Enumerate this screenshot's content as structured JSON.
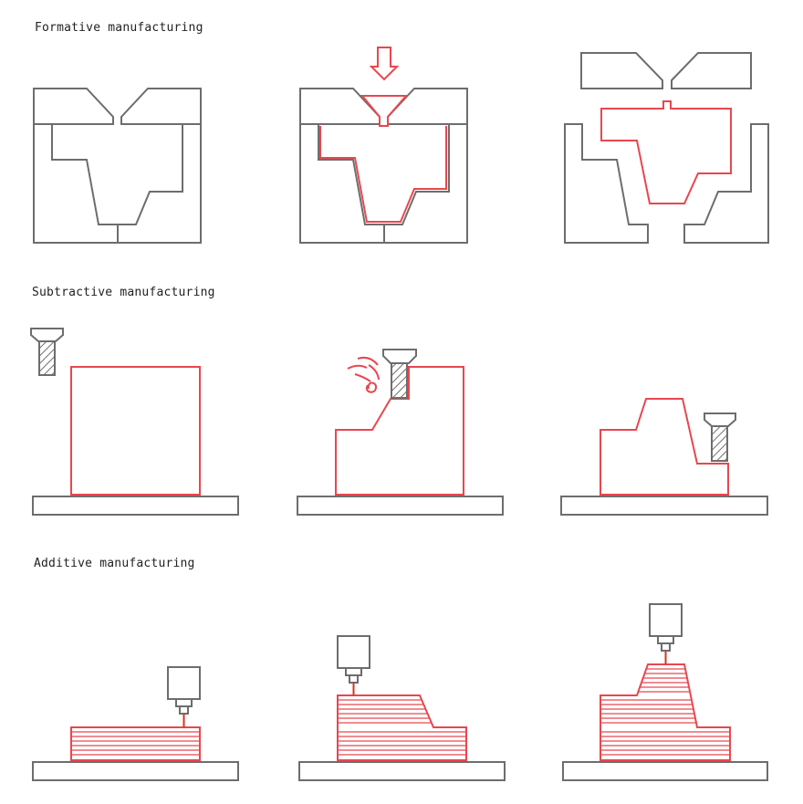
{
  "sections": [
    {
      "title": "Formative manufacturing"
    },
    {
      "title": "Subtractive manufacturing"
    },
    {
      "title": "Additive manufacturing"
    }
  ],
  "colors": {
    "outline": "#6d6d6d",
    "highlight": "#e8474f",
    "background": "#ffffff"
  },
  "icons": [
    "down-arrow-icon",
    "milling-tool-icon",
    "print-head-icon"
  ]
}
